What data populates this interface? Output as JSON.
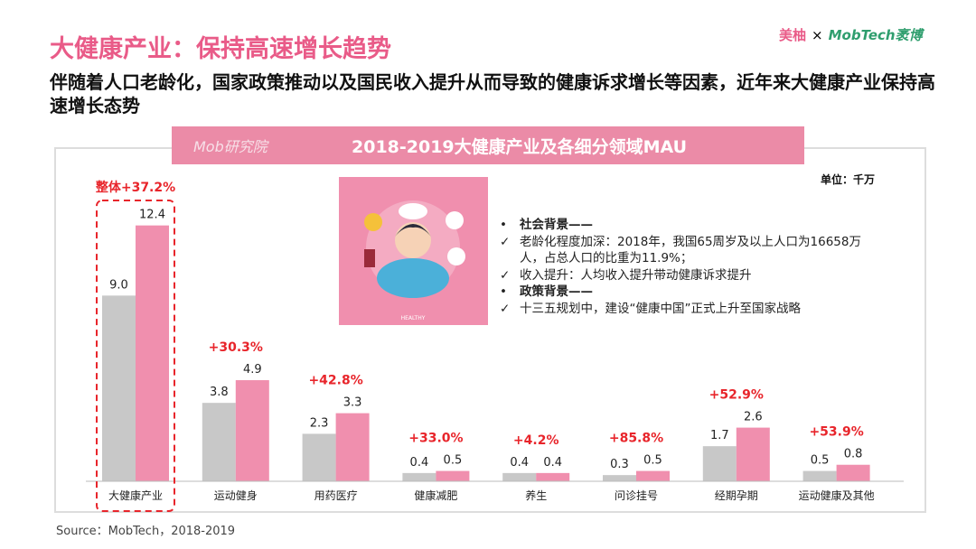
{
  "title": "大健康产业：保持高速增长趋势",
  "logos": {
    "partner": "美柚",
    "x": "×",
    "brand": "MobTech袤博"
  },
  "subtitle": "伴随着人口老龄化，国家政策推动以及国民收入提升从而导致的健康诉求增长等因素，近年来大健康产业保持高速增长态势",
  "header": {
    "logo": "Mob研究院",
    "title": "2018-2019大健康产业及各细分领域MAU"
  },
  "unit": "单位：千万",
  "illustration_label": "HEALTHY",
  "background": [
    {
      "marker": "•",
      "text": "社会背景——",
      "bold": true
    },
    {
      "marker": "✓",
      "text": "老龄化程度加深：2018年，我国65周岁及以上人口为16658万人，占总人口的比重为11.9%；",
      "bold": false
    },
    {
      "marker": "✓",
      "text": "收入提升：人均收入提升带动健康诉求提升",
      "bold": false
    },
    {
      "marker": "•",
      "text": "政策背景——",
      "bold": true
    },
    {
      "marker": "✓",
      "text": "十三五规划中，建设“健康中国”正式上升至国家战略",
      "bold": false
    }
  ],
  "source": "Source：MobTech，2018-2019",
  "colors": {
    "accent": "#e95b88",
    "series_2018": "#c8c8c8",
    "series_2019": "#f08fae",
    "growth": "#e8252b"
  },
  "chart_data": {
    "type": "bar",
    "title": "2018-2019大健康产业及各细分领域MAU",
    "unit": "单位：千万",
    "categories": [
      "大健康产业",
      "运动健身",
      "用药医疗",
      "健康减肥",
      "养生",
      "问诊挂号",
      "经期孕期",
      "运动健康及其他"
    ],
    "series": [
      {
        "values": [
          9.0,
          3.8,
          2.3,
          0.4,
          0.4,
          0.3,
          1.7,
          0.5
        ],
        "color": "#c8c8c8"
      },
      {
        "values": [
          12.4,
          4.9,
          3.3,
          0.5,
          0.4,
          0.5,
          2.6,
          0.8
        ],
        "color": "#f08fae"
      }
    ],
    "growth_labels": [
      "整体+37.2%",
      "+30.3%",
      "+42.8%",
      "+33.0%",
      "+4.2%",
      "+85.8%",
      "+52.9%",
      "+53.9%"
    ],
    "highlight": "大健康产业",
    "ylim": [
      0,
      12.4
    ],
    "grid": false
  }
}
